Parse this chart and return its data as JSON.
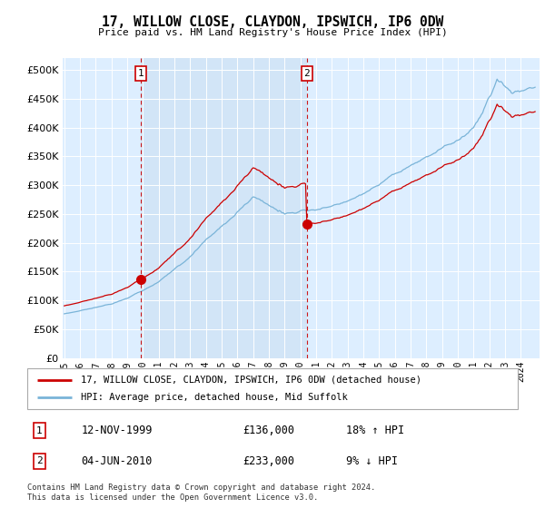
{
  "title": "17, WILLOW CLOSE, CLAYDON, IPSWICH, IP6 0DW",
  "subtitle": "Price paid vs. HM Land Registry's House Price Index (HPI)",
  "ylim": [
    0,
    520000
  ],
  "yticks": [
    0,
    50000,
    100000,
    150000,
    200000,
    250000,
    300000,
    350000,
    400000,
    450000,
    500000
  ],
  "sale1_date_num": 1999.87,
  "sale1_price": 136000,
  "sale1_label": "1",
  "sale2_date_num": 2010.42,
  "sale2_price": 233000,
  "sale2_label": "2",
  "legend_line1": "17, WILLOW CLOSE, CLAYDON, IPSWICH, IP6 0DW (detached house)",
  "legend_line2": "HPI: Average price, detached house, Mid Suffolk",
  "footer": "Contains HM Land Registry data © Crown copyright and database right 2024.\nThis data is licensed under the Open Government Licence v3.0.",
  "hpi_color": "#7ab4d8",
  "price_color": "#cc0000",
  "dashed_line_color": "#cc0000",
  "plot_bg_color": "#ddeeff",
  "shade_color": "#c8ddf0",
  "xmin": 1995,
  "xmax": 2025
}
